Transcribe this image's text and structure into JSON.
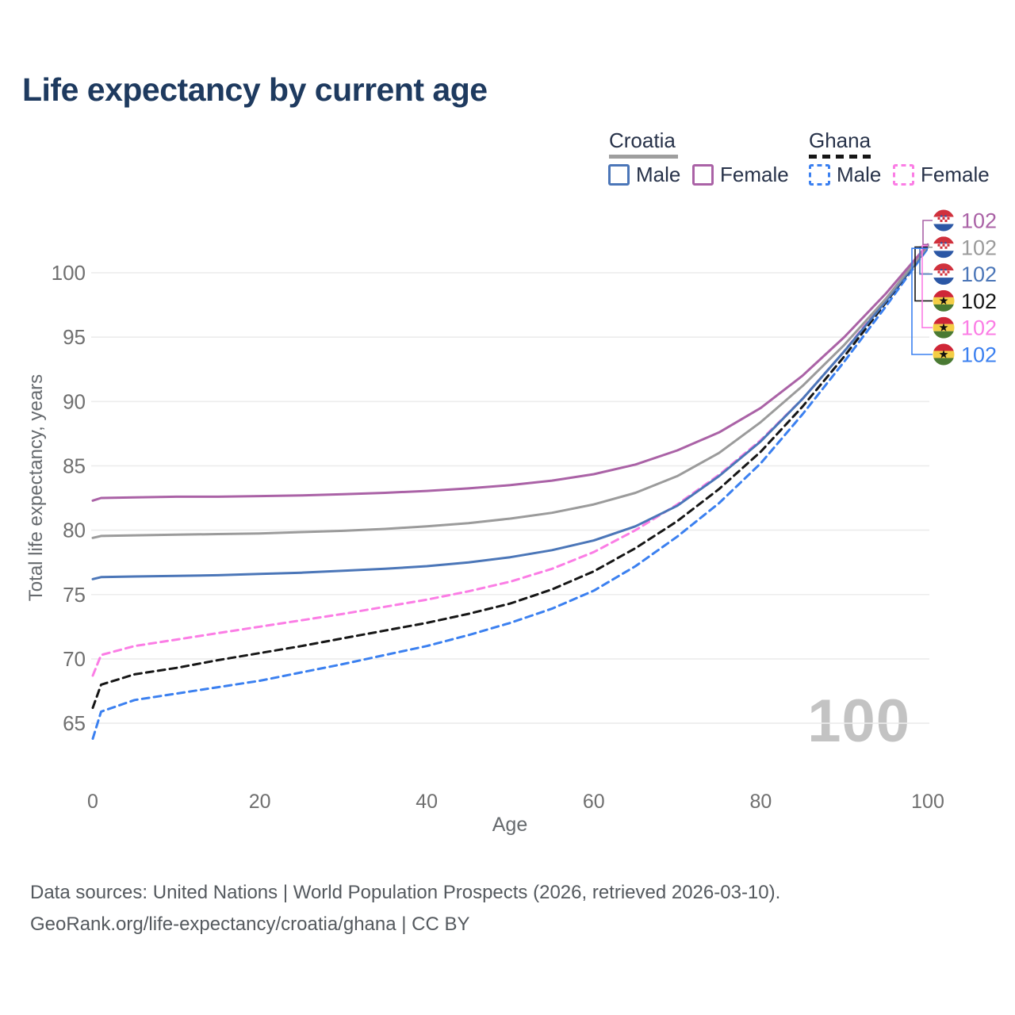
{
  "title": "Life expectancy by current age",
  "watermark": "100",
  "legend": {
    "groups": [
      {
        "name": "Croatia",
        "line_style": "solid",
        "line_color": "#9e9e9e",
        "items": [
          {
            "label": "Male",
            "color": "#4b76b8",
            "dashed": false
          },
          {
            "label": "Female",
            "color": "#aa62a6",
            "dashed": false
          }
        ]
      },
      {
        "name": "Ghana",
        "line_style": "dashed",
        "line_color": "#161616",
        "items": [
          {
            "label": "Male",
            "color": "#3b80f0",
            "dashed": true
          },
          {
            "label": "Female",
            "color": "#fb7de5",
            "dashed": true
          }
        ]
      }
    ]
  },
  "chart_data": {
    "type": "line",
    "title": "Life expectancy by current age",
    "xlabel": "Age",
    "ylabel": "Total life expectancy, years",
    "xlim": [
      0,
      100
    ],
    "ylim": [
      63,
      103
    ],
    "x_ticks": [
      0,
      20,
      40,
      60,
      80,
      100
    ],
    "y_ticks": [
      65,
      70,
      75,
      80,
      85,
      90,
      95,
      100
    ],
    "grid": "horizontal",
    "legend_position": "top-right",
    "x": [
      0,
      1,
      5,
      10,
      15,
      20,
      25,
      30,
      35,
      40,
      45,
      50,
      55,
      60,
      65,
      70,
      75,
      80,
      85,
      90,
      95,
      100
    ],
    "series": [
      {
        "name": "Croatia Female",
        "country": "Croatia",
        "sex": "Female",
        "flag": "croatia",
        "color": "#aa62a6",
        "dashed": false,
        "end_label": "102",
        "values": [
          82.3,
          82.5,
          82.55,
          82.6,
          82.6,
          82.65,
          82.7,
          82.8,
          82.9,
          83.05,
          83.25,
          83.5,
          83.85,
          84.35,
          85.1,
          86.2,
          87.6,
          89.5,
          92.0,
          95.0,
          98.4,
          102.2
        ]
      },
      {
        "name": "Croatia Both sexes",
        "country": "Croatia",
        "sex": "Both",
        "flag": "croatia",
        "color": "#9b9b9b",
        "dashed": false,
        "end_label": "102",
        "values": [
          79.4,
          79.55,
          79.6,
          79.65,
          79.7,
          79.75,
          79.85,
          79.95,
          80.1,
          80.3,
          80.55,
          80.9,
          81.35,
          82.0,
          82.9,
          84.2,
          86.0,
          88.4,
          91.2,
          94.4,
          98.0,
          102.1
        ]
      },
      {
        "name": "Croatia Male",
        "country": "Croatia",
        "sex": "Male",
        "flag": "croatia",
        "color": "#4b76b8",
        "dashed": false,
        "end_label": "102",
        "values": [
          76.2,
          76.35,
          76.4,
          76.45,
          76.5,
          76.6,
          76.7,
          76.85,
          77.0,
          77.2,
          77.5,
          77.9,
          78.45,
          79.2,
          80.3,
          81.9,
          84.2,
          86.9,
          90.2,
          93.9,
          97.8,
          102.0
        ]
      },
      {
        "name": "Ghana Both sexes",
        "country": "Ghana",
        "sex": "Both",
        "flag": "ghana",
        "color": "#161616",
        "dashed": true,
        "end_label": "102",
        "values": [
          66.2,
          68.0,
          68.8,
          69.3,
          69.9,
          70.45,
          71.0,
          71.6,
          72.2,
          72.8,
          73.5,
          74.3,
          75.4,
          76.8,
          78.6,
          80.7,
          83.2,
          86.1,
          89.6,
          93.5,
          97.7,
          102.0
        ]
      },
      {
        "name": "Ghana Female",
        "country": "Ghana",
        "sex": "Female",
        "flag": "ghana",
        "color": "#fb7de5",
        "dashed": true,
        "end_label": "102",
        "values": [
          68.7,
          70.3,
          71.0,
          71.5,
          72.0,
          72.5,
          73.0,
          73.5,
          74.05,
          74.6,
          75.25,
          76.0,
          77.0,
          78.3,
          80.0,
          82.0,
          84.3,
          87.0,
          90.2,
          93.9,
          98.0,
          102.1
        ]
      },
      {
        "name": "Ghana Male",
        "country": "Ghana",
        "sex": "Male",
        "flag": "ghana",
        "color": "#3b80f0",
        "dashed": true,
        "end_label": "102",
        "values": [
          63.8,
          65.9,
          66.8,
          67.3,
          67.8,
          68.3,
          68.95,
          69.6,
          70.3,
          71.0,
          71.85,
          72.8,
          73.9,
          75.3,
          77.2,
          79.5,
          82.1,
          85.2,
          89.0,
          93.1,
          97.4,
          101.9
        ]
      }
    ]
  },
  "footer": {
    "line1": "Data sources: United Nations | World Population Prospects (2026, retrieved 2026-03-10).",
    "line2": "GeoRank.org/life-expectancy/croatia/ghana | CC BY"
  }
}
